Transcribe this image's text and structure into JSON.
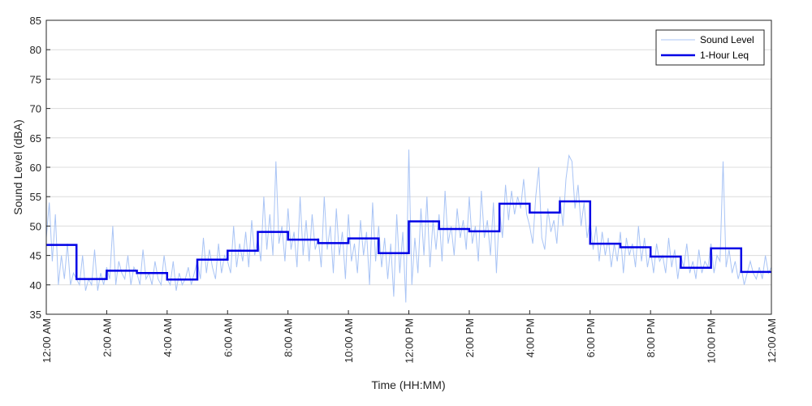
{
  "chart_data": {
    "type": "line",
    "title": "",
    "xlabel": "Time (HH:MM)",
    "ylabel": "Sound Level (dBA)",
    "ylim": [
      35,
      85
    ],
    "yticks": [
      35,
      40,
      45,
      50,
      55,
      60,
      65,
      70,
      75,
      80,
      85
    ],
    "xlim_hours": [
      0,
      24
    ],
    "xticks": [
      {
        "hour": 0,
        "label": "12:00 AM"
      },
      {
        "hour": 2,
        "label": "2:00 AM"
      },
      {
        "hour": 4,
        "label": "4:00 AM"
      },
      {
        "hour": 6,
        "label": "6:00 AM"
      },
      {
        "hour": 8,
        "label": "8:00 AM"
      },
      {
        "hour": 10,
        "label": "10:00 AM"
      },
      {
        "hour": 12,
        "label": "12:00 PM"
      },
      {
        "hour": 14,
        "label": "2:00 PM"
      },
      {
        "hour": 16,
        "label": "4:00 PM"
      },
      {
        "hour": 18,
        "label": "6:00 PM"
      },
      {
        "hour": 20,
        "label": "8:00 PM"
      },
      {
        "hour": 22,
        "label": "10:00 PM"
      },
      {
        "hour": 24,
        "label": "12:00 AM"
      }
    ],
    "grid": "horizontal",
    "legend_position": "top-right",
    "series": [
      {
        "name": "Sound Level",
        "color": "#a9c4f5",
        "style": "thin-line",
        "x_hours": [
          0,
          0.1,
          0.2,
          0.3,
          0.4,
          0.5,
          0.6,
          0.7,
          0.8,
          0.9,
          1.0,
          1.1,
          1.2,
          1.3,
          1.4,
          1.5,
          1.6,
          1.7,
          1.8,
          1.9,
          2.0,
          2.1,
          2.2,
          2.3,
          2.4,
          2.5,
          2.6,
          2.7,
          2.8,
          2.9,
          3.0,
          3.1,
          3.2,
          3.3,
          3.4,
          3.5,
          3.6,
          3.7,
          3.8,
          3.9,
          4.0,
          4.1,
          4.2,
          4.3,
          4.4,
          4.5,
          4.6,
          4.7,
          4.8,
          4.9,
          5.0,
          5.1,
          5.2,
          5.3,
          5.4,
          5.5,
          5.6,
          5.7,
          5.8,
          5.9,
          6.0,
          6.1,
          6.2,
          6.3,
          6.4,
          6.5,
          6.6,
          6.7,
          6.8,
          6.9,
          7.0,
          7.1,
          7.2,
          7.3,
          7.4,
          7.5,
          7.6,
          7.7,
          7.8,
          7.9,
          8.0,
          8.1,
          8.2,
          8.3,
          8.4,
          8.5,
          8.6,
          8.7,
          8.8,
          8.9,
          9.0,
          9.1,
          9.2,
          9.3,
          9.4,
          9.5,
          9.6,
          9.7,
          9.8,
          9.9,
          10.0,
          10.1,
          10.2,
          10.3,
          10.4,
          10.5,
          10.6,
          10.7,
          10.8,
          10.9,
          11.0,
          11.1,
          11.2,
          11.3,
          11.4,
          11.5,
          11.6,
          11.7,
          11.8,
          11.9,
          12.0,
          12.1,
          12.2,
          12.3,
          12.4,
          12.5,
          12.6,
          12.7,
          12.8,
          12.9,
          13.0,
          13.1,
          13.2,
          13.3,
          13.4,
          13.5,
          13.6,
          13.7,
          13.8,
          13.9,
          14.0,
          14.1,
          14.2,
          14.3,
          14.4,
          14.5,
          14.6,
          14.7,
          14.8,
          14.9,
          15.0,
          15.1,
          15.2,
          15.3,
          15.4,
          15.5,
          15.6,
          15.7,
          15.8,
          15.9,
          16.0,
          16.1,
          16.2,
          16.3,
          16.4,
          16.5,
          16.6,
          16.7,
          16.8,
          16.9,
          17.0,
          17.1,
          17.2,
          17.3,
          17.4,
          17.5,
          17.6,
          17.7,
          17.8,
          17.9,
          18.0,
          18.1,
          18.2,
          18.3,
          18.4,
          18.5,
          18.6,
          18.7,
          18.8,
          18.9,
          19.0,
          19.1,
          19.2,
          19.3,
          19.4,
          19.5,
          19.6,
          19.7,
          19.8,
          19.9,
          20.0,
          20.1,
          20.2,
          20.3,
          20.4,
          20.5,
          20.6,
          20.7,
          20.8,
          20.9,
          21.0,
          21.1,
          21.2,
          21.3,
          21.4,
          21.5,
          21.6,
          21.7,
          21.8,
          21.9,
          22.0,
          22.1,
          22.2,
          22.3,
          22.4,
          22.5,
          22.6,
          22.7,
          22.8,
          22.9,
          23.0,
          23.1,
          23.2,
          23.3,
          23.4,
          23.5,
          23.6,
          23.7,
          23.8,
          23.9,
          24.0
        ],
        "values": [
          48,
          54,
          44,
          52,
          40,
          45,
          41,
          47,
          40,
          42,
          41,
          40,
          45,
          39,
          41,
          40,
          46,
          39,
          42,
          40,
          43,
          41,
          50,
          40,
          44,
          42,
          41,
          45,
          40,
          43,
          42,
          40,
          46,
          41,
          42,
          40,
          44,
          41,
          40,
          45,
          41,
          40,
          44,
          39,
          42,
          40,
          41,
          43,
          40,
          42,
          44,
          41,
          48,
          42,
          46,
          43,
          41,
          47,
          42,
          45,
          44,
          42,
          50,
          43,
          47,
          44,
          49,
          43,
          51,
          45,
          48,
          44,
          55,
          46,
          52,
          45,
          61,
          47,
          50,
          44,
          53,
          46,
          49,
          43,
          55,
          45,
          51,
          44,
          52,
          46,
          48,
          43,
          55,
          46,
          50,
          42,
          53,
          45,
          49,
          41,
          52,
          44,
          47,
          42,
          51,
          45,
          49,
          40,
          54,
          44,
          50,
          43,
          48,
          41,
          47,
          38,
          52,
          42,
          49,
          37,
          63,
          40,
          48,
          42,
          53,
          45,
          55,
          43,
          51,
          46,
          52,
          44,
          56,
          47,
          50,
          45,
          53,
          48,
          51,
          46,
          55,
          47,
          50,
          44,
          56,
          48,
          51,
          45,
          54,
          42,
          53,
          48,
          57,
          51,
          56,
          52,
          55,
          53,
          58,
          52,
          50,
          47,
          55,
          60,
          48,
          46,
          53,
          49,
          51,
          47,
          55,
          50,
          58,
          62,
          61,
          53,
          57,
          50,
          54,
          48,
          51,
          46,
          50,
          44,
          49,
          45,
          48,
          43,
          47,
          44,
          49,
          42,
          48,
          45,
          47,
          43,
          50,
          44,
          48,
          43,
          46,
          42,
          47,
          44,
          45,
          42,
          48,
          43,
          46,
          41,
          45,
          43,
          47,
          42,
          44,
          41,
          46,
          42,
          44,
          43,
          47,
          42,
          45,
          44,
          61,
          43,
          46,
          42,
          44,
          41,
          43,
          40,
          42,
          44,
          42,
          41,
          43,
          41,
          45,
          42,
          43
        ]
      },
      {
        "name": "1-Hour Leq",
        "color": "#0000e6",
        "style": "thick-step",
        "hourly_leq": [
          46.8,
          41.0,
          42.4,
          42.0,
          40.9,
          44.3,
          45.8,
          49.0,
          47.7,
          47.1,
          47.9,
          45.4,
          50.8,
          49.5,
          49.1,
          53.8,
          52.3,
          54.2,
          47.0,
          46.4,
          44.8,
          42.9,
          46.2,
          42.2
        ]
      }
    ]
  }
}
